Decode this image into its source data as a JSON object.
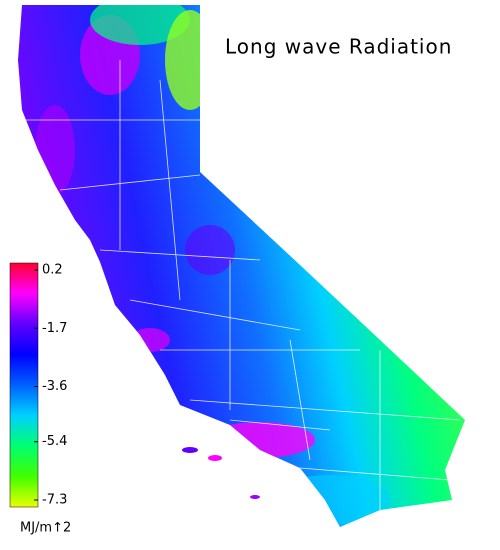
{
  "title": "Long wave Radiation",
  "colorbar": {
    "lim": [
      -7.3,
      0.2
    ],
    "ticks": [
      0.2,
      -1.7,
      -3.6,
      -5.4,
      -7.3
    ],
    "unit": "MJ/m↑2",
    "colors": [
      "#e8ff00",
      "#40ff00",
      "#00ff70",
      "#00d0ff",
      "#0060ff",
      "#0000ff",
      "#6000ff",
      "#ff00ff",
      "#ff0030"
    ]
  }
}
